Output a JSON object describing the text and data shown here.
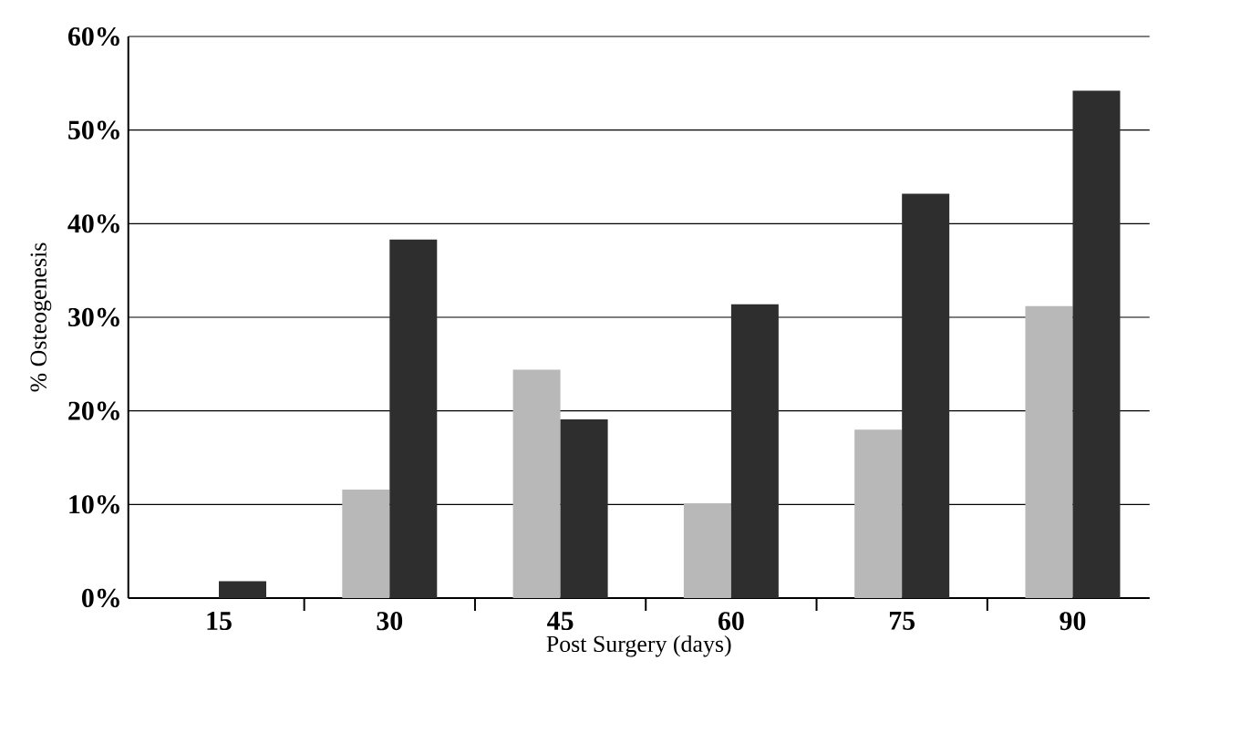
{
  "chart_data": {
    "type": "bar",
    "xlabel": "Post Surgery (days)",
    "ylabel": "% Osteogenesis",
    "categories": [
      "15",
      "30",
      "45",
      "60",
      "75",
      "90"
    ],
    "series": [
      {
        "color": "#b8b8b8",
        "values": [
          0,
          11.6,
          24.4,
          10.1,
          18.0,
          31.2
        ]
      },
      {
        "color": "#2e2e2e",
        "values": [
          1.8,
          38.3,
          19.1,
          31.4,
          43.2,
          54.2
        ]
      }
    ],
    "ylim": [
      0,
      60
    ],
    "yticks": [
      {
        "value": 0,
        "label": "0%"
      },
      {
        "value": 10,
        "label": "10%"
      },
      {
        "value": 20,
        "label": "20%"
      },
      {
        "value": 30,
        "label": "30%"
      },
      {
        "value": 40,
        "label": "40%"
      },
      {
        "value": 50,
        "label": "50%"
      },
      {
        "value": 60,
        "label": "60%"
      }
    ],
    "grid": "y"
  }
}
